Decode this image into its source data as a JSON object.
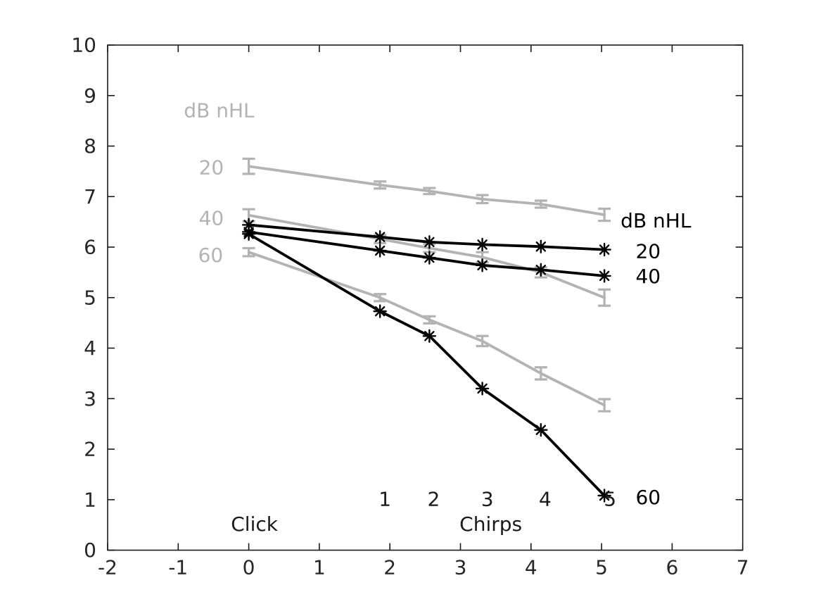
{
  "figure": {
    "background": "#ffffff",
    "axis_color": "#1a1a1a",
    "tick_label_color": "#262626",
    "gray_color": "#b3b3b3",
    "black_color": "#000000"
  },
  "chart_data": {
    "type": "line",
    "title": "",
    "xlabel": "",
    "ylabel": "",
    "xlim": [
      -2,
      7
    ],
    "ylim": [
      0,
      10
    ],
    "x_ticks": [
      -2,
      -1,
      0,
      1,
      2,
      3,
      4,
      5,
      6,
      7
    ],
    "y_ticks": [
      0,
      1,
      2,
      3,
      4,
      5,
      6,
      7,
      8,
      9,
      10
    ],
    "grid": false,
    "legend_position": "in-plot text labels",
    "x": [
      0,
      1.86,
      2.56,
      3.31,
      4.14,
      5.04
    ],
    "x_meaning": [
      "Click",
      "Chirp 1",
      "Chirp 2",
      "Chirp 3",
      "Chirp 4",
      "Chirp 5"
    ],
    "series": [
      {
        "name": "gray-20-dB-nHL",
        "label": "20",
        "group": "gray",
        "color": "#b3b3b3",
        "style": "errorbar-line",
        "values": [
          7.6,
          7.23,
          7.11,
          6.95,
          6.85,
          6.64
        ],
        "errors": [
          0.15,
          0.07,
          0.06,
          0.08,
          0.07,
          0.12
        ]
      },
      {
        "name": "gray-40-dB-nHL",
        "label": "40",
        "group": "gray",
        "color": "#b3b3b3",
        "style": "errorbar-line",
        "values": [
          6.63,
          6.16,
          5.98,
          5.8,
          5.5,
          5.0
        ],
        "errors": [
          0.12,
          0.08,
          0.08,
          0.1,
          0.1,
          0.16
        ]
      },
      {
        "name": "gray-60-dB-nHL",
        "label": "60",
        "group": "gray",
        "color": "#b3b3b3",
        "style": "errorbar-line",
        "values": [
          5.9,
          5.0,
          4.56,
          4.14,
          3.5,
          2.87
        ],
        "errors": [
          0.08,
          0.07,
          0.07,
          0.1,
          0.12,
          0.12
        ]
      },
      {
        "name": "black-20-dB-nHL",
        "label": "20",
        "group": "black",
        "color": "#000000",
        "style": "asterisk-line",
        "values": [
          6.44,
          6.2,
          6.1,
          6.05,
          6.01,
          5.95
        ]
      },
      {
        "name": "black-40-dB-nHL",
        "label": "40",
        "group": "black",
        "color": "#000000",
        "style": "asterisk-line",
        "values": [
          6.3,
          5.93,
          5.79,
          5.64,
          5.55,
          5.43
        ]
      },
      {
        "name": "black-60-dB-nHL",
        "label": "60",
        "group": "black",
        "color": "#000000",
        "style": "asterisk-line",
        "values": [
          6.26,
          4.73,
          4.24,
          3.2,
          2.38,
          1.08
        ]
      }
    ],
    "annotations": [
      {
        "name": "gray-legend-title",
        "text": "dB nHL",
        "x": -0.42,
        "y": 8.71,
        "color": "#b3b3b3"
      },
      {
        "name": "gray-label-20",
        "text": "20",
        "x": -0.53,
        "y": 7.58,
        "color": "#b3b3b3"
      },
      {
        "name": "gray-label-40",
        "text": "40",
        "x": -0.53,
        "y": 6.58,
        "color": "#b3b3b3"
      },
      {
        "name": "gray-label-60",
        "text": "60",
        "x": -0.54,
        "y": 5.85,
        "color": "#b3b3b3"
      },
      {
        "name": "black-legend-title",
        "text": "dB nHL",
        "x": 5.77,
        "y": 6.53,
        "color": "#000000"
      },
      {
        "name": "black-label-20",
        "text": "20",
        "x": 5.66,
        "y": 5.92,
        "color": "#000000"
      },
      {
        "name": "black-label-40",
        "text": "40",
        "x": 5.66,
        "y": 5.43,
        "color": "#000000"
      },
      {
        "name": "black-label-60",
        "text": "60",
        "x": 5.66,
        "y": 1.05,
        "color": "#000000"
      },
      {
        "name": "click-label",
        "text": "Click",
        "x": 0.08,
        "y": 0.52,
        "color": "#1a1a1a"
      },
      {
        "name": "chirps-label",
        "text": "Chirps",
        "x": 3.43,
        "y": 0.52,
        "color": "#1a1a1a"
      },
      {
        "name": "chirp-number-1",
        "text": "1",
        "x": 1.93,
        "y": 1.02,
        "color": "#1a1a1a"
      },
      {
        "name": "chirp-number-2",
        "text": "2",
        "x": 2.62,
        "y": 1.02,
        "color": "#1a1a1a"
      },
      {
        "name": "chirp-number-3",
        "text": "3",
        "x": 3.38,
        "y": 1.02,
        "color": "#1a1a1a"
      },
      {
        "name": "chirp-number-4",
        "text": "4",
        "x": 4.2,
        "y": 1.02,
        "color": "#1a1a1a"
      },
      {
        "name": "chirp-number-5",
        "text": "5",
        "x": 5.12,
        "y": 1.02,
        "color": "#1a1a1a"
      }
    ]
  }
}
